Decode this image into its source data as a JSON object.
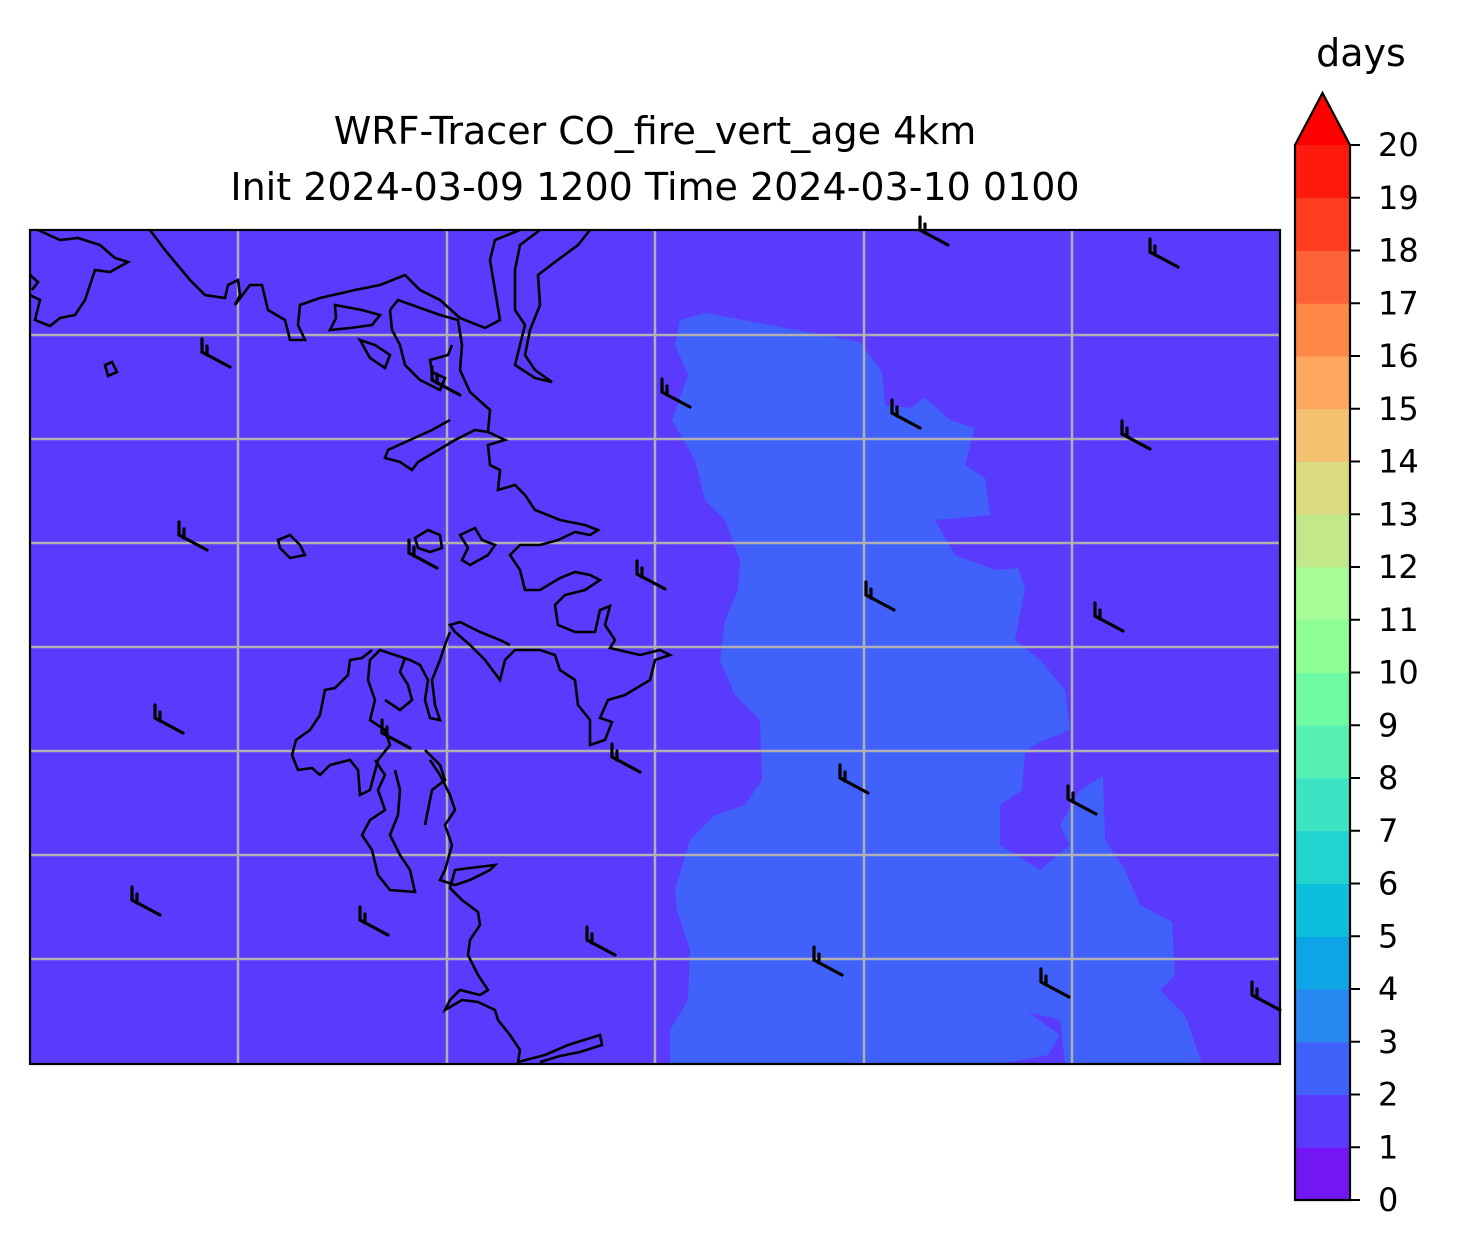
{
  "title_line1": "WRF-Tracer CO_fire_vert_age 4km",
  "title_line2": "Init 2024-03-09 1200 Time 2024-03-10 0100",
  "chart_data": {
    "type": "contourf-map",
    "field": "CO_fire_vert_age",
    "units": "days",
    "levels": [
      0,
      1,
      2,
      3,
      4,
      5,
      6,
      7,
      8,
      9,
      10,
      11,
      12,
      13,
      14,
      15,
      16,
      17,
      18,
      19,
      20
    ],
    "colorbar_ticks": [
      "0",
      "1",
      "2",
      "3",
      "4",
      "5",
      "6",
      "7",
      "8",
      "9",
      "10",
      "11",
      "12",
      "13",
      "14",
      "15",
      "16",
      "17",
      "18",
      "19",
      "20"
    ],
    "colorbar_label": "days",
    "colorbar_extend": "max",
    "colors": [
      "#7216f4",
      "#5a3afd",
      "#4062fa",
      "#2688f0",
      "#0ea5e7",
      "#0cc0dc",
      "#22d3d0",
      "#3ce4c3",
      "#56f0b4",
      "#70faa4",
      "#8cfe94",
      "#a6fc96",
      "#c2e88a",
      "#dada80",
      "#f2c270",
      "#fda65e",
      "#ff8846",
      "#ff6236",
      "#ff3e20",
      "#ff1a10"
    ],
    "extend_color": "#ff0000",
    "background_band": [
      1,
      2
    ],
    "region_band": [
      2,
      3
    ],
    "gridlines": true,
    "overlays": [
      "coastlines",
      "wind barbs"
    ]
  }
}
